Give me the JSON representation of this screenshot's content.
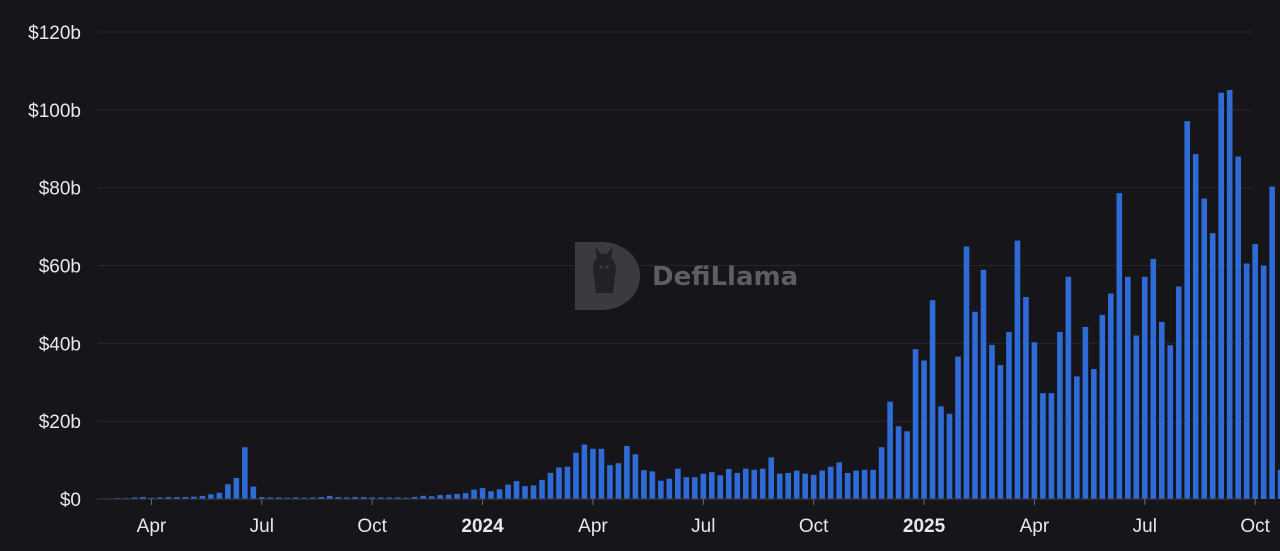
{
  "colors": {
    "background": "#16161a",
    "bar": "#2f6bd6",
    "grid": "#26262b",
    "text": "#e8e8ea",
    "watermark": "#5d5d63"
  },
  "watermark": {
    "text": "DefiLlama",
    "icon": "llama-logo-icon"
  },
  "chart_data": {
    "type": "bar",
    "title": "",
    "xlabel": "",
    "ylabel": "",
    "ylim": [
      0,
      120
    ],
    "y_unit": "billions USD",
    "y_ticks": [
      "$0",
      "$20b",
      "$40b",
      "$60b",
      "$80b",
      "$100b",
      "$120b"
    ],
    "x_ticks": [
      {
        "label": "Apr",
        "bar_index": 4,
        "bold": false
      },
      {
        "label": "Jul",
        "bar_index": 17,
        "bold": false
      },
      {
        "label": "Oct",
        "bar_index": 30,
        "bold": false
      },
      {
        "label": "2024",
        "bar_index": 43,
        "bold": true
      },
      {
        "label": "Apr",
        "bar_index": 56,
        "bold": false
      },
      {
        "label": "Jul",
        "bar_index": 69,
        "bold": false
      },
      {
        "label": "Oct",
        "bar_index": 82,
        "bold": false
      },
      {
        "label": "2025",
        "bar_index": 95,
        "bold": true
      },
      {
        "label": "Apr",
        "bar_index": 108,
        "bold": false
      },
      {
        "label": "Jul",
        "bar_index": 121,
        "bold": false
      },
      {
        "label": "Oct",
        "bar_index": 134,
        "bold": false
      }
    ],
    "grid": true,
    "legend": "none",
    "series": [
      {
        "values": [
          0.1,
          0.2,
          0.4,
          0.5,
          0.3,
          0.4,
          0.5,
          0.5,
          0.5,
          0.6,
          0.8,
          1.2,
          1.6,
          3.8,
          5.4,
          13.3,
          3.2,
          0.5,
          0.4,
          0.4,
          0.3,
          0.4,
          0.3,
          0.4,
          0.5,
          0.8,
          0.5,
          0.4,
          0.5,
          0.5,
          0.4,
          0.4,
          0.4,
          0.4,
          0.3,
          0.5,
          0.8,
          0.7,
          1.0,
          1.1,
          1.3,
          1.5,
          2.4,
          2.8,
          2.0,
          2.5,
          3.7,
          4.6,
          3.3,
          3.5,
          4.9,
          6.7,
          8.1,
          8.3,
          11.9,
          14.0,
          12.9,
          12.9,
          8.7,
          9.2,
          13.6,
          11.5,
          7.4,
          7.1,
          4.7,
          5.2,
          7.8,
          5.6,
          5.6,
          6.5,
          6.9,
          6.1,
          7.7,
          6.7,
          7.8,
          7.5,
          7.8,
          10.7,
          6.5,
          6.7,
          7.3,
          6.5,
          6.2,
          7.3,
          8.3,
          9.4,
          6.7,
          7.3,
          7.5,
          7.5,
          13.3,
          25.0,
          18.7,
          17.4,
          38.5,
          35.6,
          51.1,
          23.8,
          21.9,
          36.6,
          64.9,
          48.1,
          58.9,
          39.6,
          34.4,
          42.9,
          66.4,
          51.9,
          40.3,
          27.2,
          27.2,
          42.9,
          57.1,
          31.5,
          44.2,
          33.4,
          47.3,
          52.8,
          78.6,
          57.1,
          42.0,
          57.1,
          61.7,
          45.5,
          39.5,
          54.6,
          97.1,
          88.6,
          77.2,
          68.3,
          104.4,
          105.1,
          88.0,
          60.5,
          65.5,
          60.0,
          80.3,
          7.5
        ]
      }
    ]
  }
}
